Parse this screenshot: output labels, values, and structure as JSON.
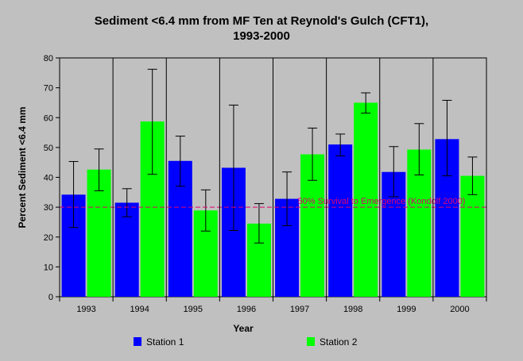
{
  "chart_data": {
    "type": "bar",
    "title_line1": "Sediment <6.4 mm from MF Ten at Reynold's Gulch (CFT1),",
    "title_line2": "1993-2000",
    "xlabel": "Year",
    "ylabel": "Percent Sediment <6.4 mm",
    "ylim": [
      0,
      80
    ],
    "yticks": [
      0,
      10,
      20,
      30,
      40,
      50,
      60,
      70,
      80
    ],
    "categories": [
      "1993",
      "1994",
      "1995",
      "1996",
      "1997",
      "1998",
      "1999",
      "2000"
    ],
    "series": [
      {
        "name": "Station 1",
        "color": "#0000ff",
        "values": [
          34.2,
          31.5,
          45.5,
          43.2,
          32.8,
          51.0,
          41.8,
          52.8
        ],
        "err_low": [
          23.2,
          26.8,
          37.0,
          22.2,
          23.8,
          47.2,
          33.5,
          40.5
        ],
        "err_high": [
          45.3,
          36.2,
          53.8,
          64.2,
          41.8,
          54.5,
          50.3,
          65.8
        ]
      },
      {
        "name": "Station 2",
        "color": "#00ff00",
        "values": [
          42.6,
          58.7,
          28.9,
          24.5,
          47.7,
          65.0,
          49.3,
          40.5
        ],
        "err_low": [
          35.5,
          41.0,
          22.0,
          18.0,
          39.0,
          61.5,
          40.8,
          34.2
        ],
        "err_high": [
          49.5,
          76.2,
          35.8,
          31.2,
          56.5,
          68.3,
          58.0,
          46.8
        ]
      }
    ],
    "reference_line": {
      "value": 30,
      "label": "50% Survival to Emergence (Kondolf 2000)",
      "color": "#e0006e"
    },
    "grid": false,
    "legend_position": "bottom"
  },
  "colors": {
    "background": "#c0c0c0",
    "plot_area": "#c0c0c0"
  }
}
